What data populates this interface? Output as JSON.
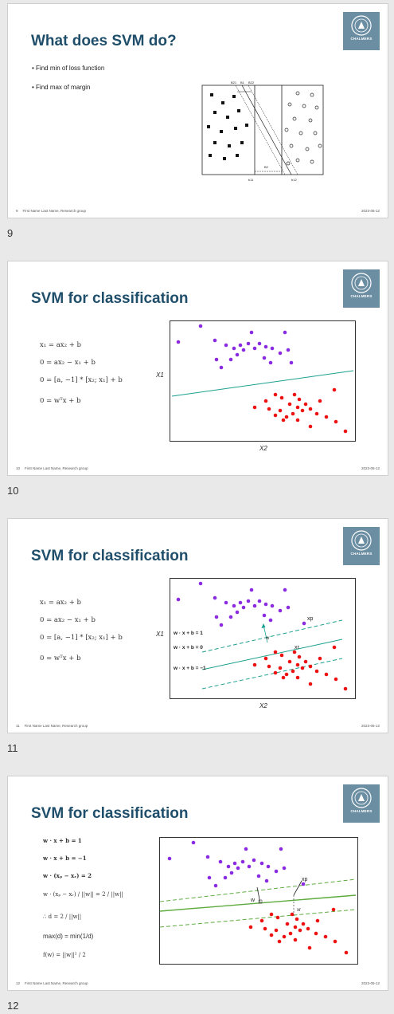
{
  "footer": {
    "author": "First Name Last Name, Research group",
    "date": "2023-05-12"
  },
  "logo": {
    "text": "CHALMERS",
    "color": "#6c8ea3"
  },
  "slides": [
    {
      "number": "9",
      "title": "What does SVM do?",
      "bullets": [
        "Find min of loss function",
        "Find max of margin"
      ],
      "figure_labels": [
        "B21",
        "B1",
        "B22",
        "b11",
        "b12",
        "B2"
      ]
    },
    {
      "number": "10",
      "title": "SVM for classification",
      "equations": [
        "x₁ = ax₂ + b",
        "0 = ax₂ − x₁ + b",
        "0 = [a, −1] * [x₂; x₁] + b",
        "0 = wᵀx + b"
      ],
      "x_label": "X2",
      "y_label": "X1"
    },
    {
      "number": "11",
      "title": "SVM for classification",
      "equations": [
        "x₁ = ax₂ + b",
        "0 = ax₂ − x₁ + b",
        "0 = [a, −1] * [x₂; x₁] + b",
        "0 = wᵀx + b"
      ],
      "x_label": "X2",
      "y_label": "X1",
      "line_labels": [
        "w · x + b = 1",
        "w · x + b = 0",
        "w · x + b = −1"
      ],
      "w_label": "w",
      "xp_label": "xp",
      "xr_label": "xr"
    },
    {
      "number": "12",
      "title": "SVM for classification",
      "equations": [
        "w · x + b = 1",
        "w · x + b = −1",
        "w · (xₚ − xᵣ) = 2",
        "w · (xₚ − xᵣ) / ||w|| = 2 / ||w||",
        "∴ d = 2 / ||w||",
        "max(d) = min(1/d)",
        "f(w) = ||w||² / 2"
      ],
      "w_label": "w",
      "xp_label": "xp",
      "xr_label": "xr"
    }
  ],
  "colors": {
    "title": "#1f4e6b",
    "purple": "#8a2be2",
    "red": "#ee1111",
    "teal": "#1aa08e",
    "green": "#5cab3c"
  }
}
